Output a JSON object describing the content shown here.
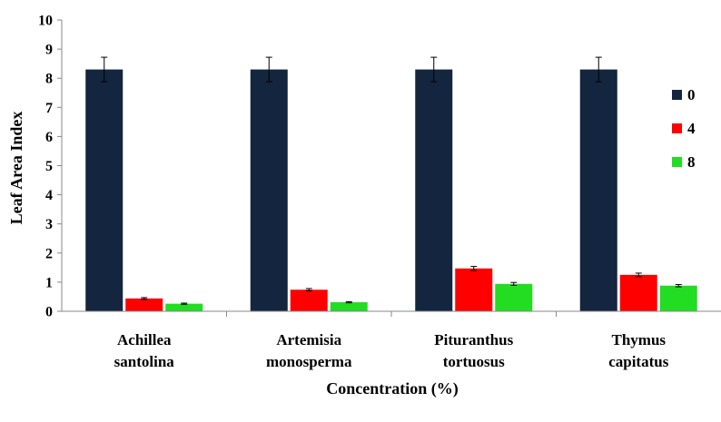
{
  "chart_data": {
    "type": "bar",
    "title": "",
    "xlabel": "Concentration (%)",
    "ylabel": "Leaf Area Index",
    "ylim": [
      0,
      10
    ],
    "yticks": [
      "0",
      "1",
      "2",
      "3",
      "4",
      "5",
      "6",
      "7",
      "8",
      "9",
      "10"
    ],
    "categories": [
      [
        "Achillea",
        "santolina"
      ],
      [
        "Artemisia",
        "monosperma"
      ],
      [
        "Pituranthus",
        "tortuosus"
      ],
      [
        "Thymus",
        "capitatus"
      ]
    ],
    "series": [
      {
        "name": "0",
        "color": "#14253f",
        "values": [
          8.3,
          8.3,
          8.3,
          8.3
        ],
        "errors": [
          0.42,
          0.42,
          0.42,
          0.42
        ]
      },
      {
        "name": "4",
        "color": "#ff0000",
        "values": [
          0.44,
          0.74,
          1.47,
          1.25
        ],
        "errors": [
          0.03,
          0.04,
          0.07,
          0.06
        ]
      },
      {
        "name": "8",
        "color": "#22dd22",
        "values": [
          0.26,
          0.31,
          0.94,
          0.88
        ],
        "errors": [
          0.02,
          0.02,
          0.05,
          0.04
        ]
      }
    ],
    "grid": false,
    "legend_position": "right"
  }
}
